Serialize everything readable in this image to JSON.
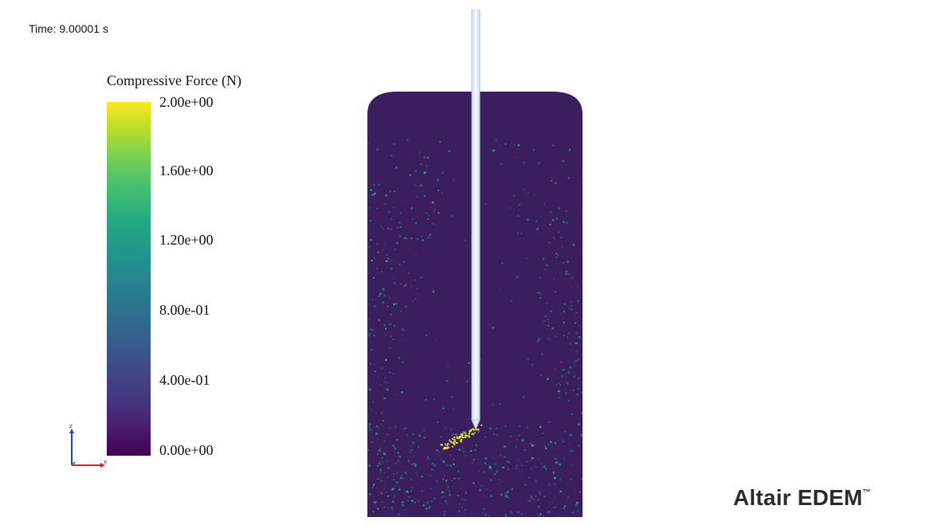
{
  "time_readout": "Time: 9.00001 s",
  "legend": {
    "title": "Compressive Force (N)",
    "ticks": [
      {
        "label": "2.00e+00",
        "value": 2.0
      },
      {
        "label": "1.60e+00",
        "value": 1.6
      },
      {
        "label": "1.20e+00",
        "value": 1.2
      },
      {
        "label": "8.00e-01",
        "value": 0.8
      },
      {
        "label": "4.00e-01",
        "value": 0.4
      },
      {
        "label": "0.00e+00",
        "value": 0.0
      }
    ],
    "range": [
      0.0,
      2.0
    ],
    "colormap": "viridis",
    "colors": [
      "#440154",
      "#3b528b",
      "#21918c",
      "#5ec962",
      "#fde725"
    ]
  },
  "axes_triad": {
    "x_label": "x",
    "z_label": "z",
    "x_color": "#d62020",
    "y_color": "#20a020",
    "z_color": "#2040d0"
  },
  "scene": {
    "container_color": "#3b1e5e",
    "probe_color": "#dfe9f7"
  },
  "brand": {
    "name": "Altair EDEM",
    "trademark": "™"
  }
}
